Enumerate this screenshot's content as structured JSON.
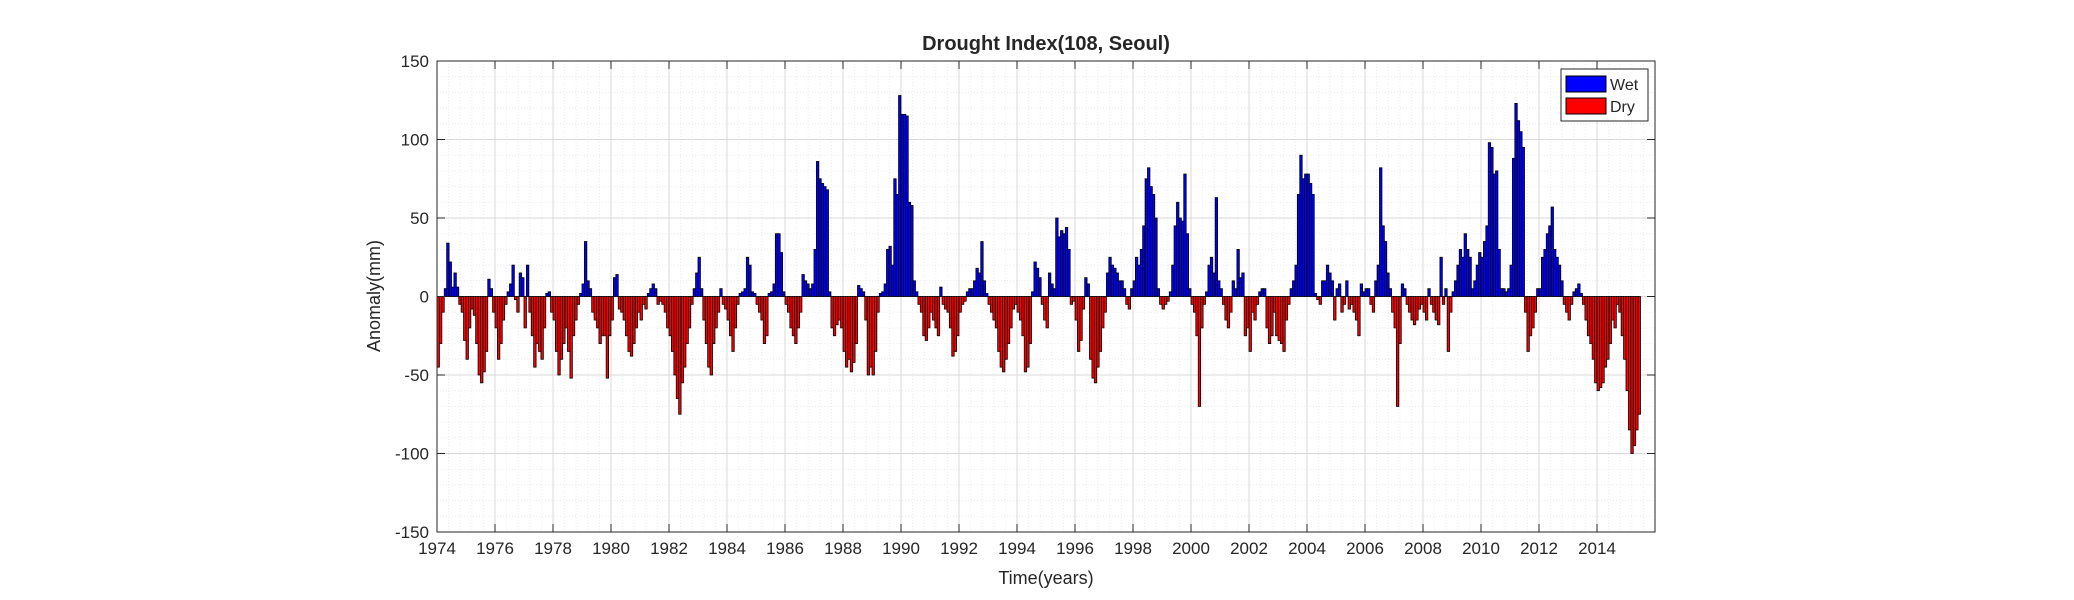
{
  "chart_data": {
    "type": "bar",
    "title": "Drought Index(108, Seoul)",
    "xlabel": "Time(years)",
    "ylabel": "Anomaly(mm)",
    "xlim": [
      1974,
      2016
    ],
    "ylim": [
      -150,
      150
    ],
    "xticks": [
      1974,
      1976,
      1978,
      1980,
      1982,
      1984,
      1986,
      1988,
      1990,
      1992,
      1994,
      1996,
      1998,
      2000,
      2002,
      2004,
      2006,
      2008,
      2010,
      2012,
      2014
    ],
    "yticks": [
      -150,
      -100,
      -50,
      0,
      50,
      100,
      150
    ],
    "grid": "major and minor",
    "legend_position": "top-right",
    "colors": {
      "Wet": "#0000ff",
      "Dry": "#ff0000",
      "edge": "#000000",
      "grid": "#d9d9d9"
    },
    "series": [
      {
        "name": "Wet",
        "sign": "positive"
      },
      {
        "name": "Dry",
        "sign": "negative"
      }
    ],
    "x_resolution": "monthly (12 values per year)",
    "x_start": 1974.0,
    "anomaly_mm_by_year": [
      {
        "year": 1974,
        "values": [
          -45,
          -30,
          -10,
          5,
          34,
          22,
          6,
          15,
          6,
          -5,
          -10,
          -28
        ]
      },
      {
        "year": 1975,
        "values": [
          -40,
          -20,
          -8,
          -12,
          -30,
          -50,
          -55,
          -48,
          -35,
          11,
          5,
          -10
        ]
      },
      {
        "year": 1976,
        "values": [
          -20,
          -40,
          -30,
          -15,
          -5,
          3,
          8,
          20,
          -2,
          -10,
          15,
          12
        ]
      },
      {
        "year": 1977,
        "values": [
          -20,
          20,
          -10,
          -25,
          -45,
          -30,
          -35,
          -40,
          -20,
          2,
          3,
          -10
        ]
      },
      {
        "year": 1978,
        "values": [
          -15,
          -35,
          -50,
          -40,
          -30,
          -20,
          -35,
          -52,
          -25,
          -15,
          -5,
          2
        ]
      },
      {
        "year": 1979,
        "values": [
          8,
          35,
          10,
          5,
          -10,
          -15,
          -20,
          -30,
          -25,
          -25,
          -52,
          -25
        ]
      },
      {
        "year": 1980,
        "values": [
          -15,
          12,
          14,
          -8,
          -10,
          -15,
          -25,
          -35,
          -38,
          -30,
          -20,
          -10
        ]
      },
      {
        "year": 1981,
        "values": [
          -15,
          -5,
          -8,
          2,
          5,
          8,
          5,
          -5,
          -3,
          -5,
          -10,
          -20
        ]
      },
      {
        "year": 1982,
        "values": [
          -25,
          -35,
          -50,
          -65,
          -75,
          -55,
          -45,
          -30,
          -20,
          -5,
          5,
          15
        ]
      },
      {
        "year": 1983,
        "values": [
          25,
          5,
          -15,
          -30,
          -45,
          -50,
          -30,
          -20,
          -10,
          5,
          -5,
          -8
        ]
      },
      {
        "year": 1984,
        "values": [
          -15,
          -25,
          -35,
          -20,
          -5,
          2,
          3,
          5,
          25,
          20,
          3,
          2
        ]
      },
      {
        "year": 1985,
        "values": [
          -5,
          -10,
          -15,
          -30,
          -25,
          2,
          3,
          8,
          40,
          40,
          28,
          3
        ]
      },
      {
        "year": 1986,
        "values": [
          -5,
          -10,
          -20,
          -25,
          -30,
          -20,
          -10,
          14,
          10,
          8,
          5,
          8
        ]
      },
      {
        "year": 1987,
        "values": [
          30,
          86,
          75,
          72,
          70,
          68,
          3,
          -20,
          -25,
          -18,
          -15,
          -20
        ]
      },
      {
        "year": 1988,
        "values": [
          -35,
          -45,
          -40,
          -48,
          -42,
          -30,
          7,
          5,
          3,
          -15,
          -50,
          -45
        ]
      },
      {
        "year": 1989,
        "values": [
          -50,
          -35,
          -10,
          2,
          3,
          8,
          30,
          32,
          20,
          75,
          65,
          128
        ]
      },
      {
        "year": 1990,
        "values": [
          116,
          116,
          115,
          60,
          58,
          10,
          3,
          -5,
          -10,
          -25,
          -28,
          -20
        ]
      },
      {
        "year": 1991,
        "values": [
          -10,
          -15,
          -20,
          -25,
          6,
          -5,
          -8,
          -10,
          -20,
          -38,
          -35,
          -25
        ]
      },
      {
        "year": 1992,
        "values": [
          -10,
          -5,
          -3,
          3,
          5,
          5,
          10,
          18,
          15,
          35,
          10,
          2
        ]
      },
      {
        "year": 1993,
        "values": [
          -5,
          -10,
          -15,
          -20,
          -35,
          -45,
          -48,
          -40,
          -30,
          -20,
          -8,
          -5
        ]
      },
      {
        "year": 1994,
        "values": [
          -10,
          -15,
          -25,
          -48,
          -45,
          -30,
          3,
          22,
          18,
          12,
          -5,
          -15
        ]
      },
      {
        "year": 1995,
        "values": [
          -20,
          15,
          8,
          5,
          50,
          38,
          42,
          40,
          44,
          30,
          -5,
          -3
        ]
      },
      {
        "year": 1996,
        "values": [
          -15,
          -35,
          -28,
          -8,
          12,
          8,
          -40,
          -52,
          -55,
          -45,
          -35,
          -20
        ]
      },
      {
        "year": 1997,
        "values": [
          -10,
          15,
          25,
          20,
          18,
          15,
          10,
          10,
          5,
          -5,
          -8,
          5
        ]
      },
      {
        "year": 1998,
        "values": [
          10,
          25,
          20,
          30,
          45,
          75,
          82,
          70,
          65,
          50,
          5,
          -5
        ]
      },
      {
        "year": 1999,
        "values": [
          -8,
          -5,
          -3,
          3,
          20,
          45,
          60,
          50,
          48,
          78,
          40,
          5
        ]
      },
      {
        "year": 2000,
        "values": [
          -5,
          -10,
          -25,
          -70,
          -20,
          -5,
          3,
          20,
          25,
          15,
          63,
          10
        ]
      },
      {
        "year": 2001,
        "values": [
          5,
          -5,
          -15,
          -20,
          -10,
          10,
          5,
          30,
          12,
          15,
          -25,
          -20
        ]
      },
      {
        "year": 2002,
        "values": [
          -35,
          -10,
          -15,
          -5,
          3,
          5,
          5,
          -20,
          -30,
          -25,
          -10,
          -25
        ]
      },
      {
        "year": 2003,
        "values": [
          -28,
          -30,
          -35,
          -15,
          -5,
          5,
          10,
          20,
          65,
          90,
          75,
          78
        ]
      },
      {
        "year": 2004,
        "values": [
          78,
          72,
          65,
          2,
          -2,
          -5,
          10,
          10,
          20,
          15,
          10,
          -15
        ]
      },
      {
        "year": 2005,
        "values": [
          5,
          8,
          -10,
          -5,
          10,
          -8,
          -5,
          -10,
          -15,
          -25,
          8,
          3
        ]
      },
      {
        "year": 2006,
        "values": [
          5,
          5,
          -5,
          -10,
          10,
          20,
          82,
          45,
          35,
          15,
          5,
          -10
        ]
      },
      {
        "year": 2007,
        "values": [
          -20,
          -70,
          -30,
          8,
          5,
          -5,
          -10,
          -15,
          -18,
          -15,
          -8,
          -5
        ]
      },
      {
        "year": 2008,
        "values": [
          -10,
          -15,
          5,
          -5,
          -10,
          -15,
          -18,
          25,
          -5,
          5,
          -35,
          -10
        ]
      },
      {
        "year": 2009,
        "values": [
          3,
          10,
          20,
          30,
          25,
          40,
          30,
          25,
          5,
          10,
          20,
          28
        ]
      },
      {
        "year": 2010,
        "values": [
          25,
          35,
          45,
          98,
          95,
          78,
          80,
          30,
          5,
          5,
          3,
          5
        ]
      },
      {
        "year": 2011,
        "values": [
          20,
          88,
          123,
          112,
          105,
          95,
          -10,
          -35,
          -25,
          -20,
          -10,
          5
        ]
      },
      {
        "year": 2012,
        "values": [
          5,
          25,
          30,
          40,
          45,
          57,
          30,
          25,
          20,
          10,
          -5,
          -10
        ]
      },
      {
        "year": 2013,
        "values": [
          -15,
          -5,
          3,
          5,
          8,
          2,
          -5,
          -15,
          -25,
          -30,
          -40,
          -55
        ]
      },
      {
        "year": 2014,
        "values": [
          -60,
          -58,
          -55,
          -45,
          -40,
          -30,
          -15,
          -20,
          -5,
          -10,
          -25,
          -40
        ]
      },
      {
        "year": 2015,
        "values": [
          -60,
          -85,
          -100,
          -95,
          -85,
          -75
        ]
      }
    ]
  }
}
